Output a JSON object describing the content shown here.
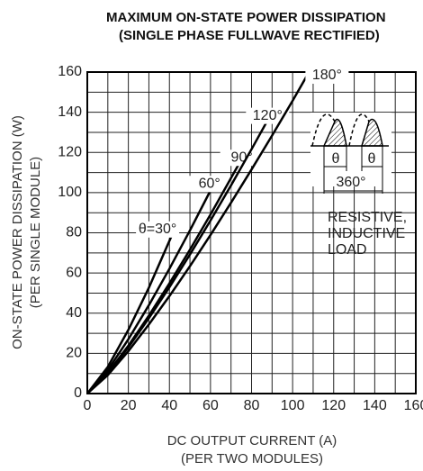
{
  "chart_data": {
    "type": "line",
    "title": [
      "MAXIMUM ON-STATE POWER DISSIPATION",
      "(SINGLE PHASE FULLWAVE RECTIFIED)"
    ],
    "ylabel": [
      "ON-STATE POWER DISSIPATION (W)",
      "(PER SINGLE MODULE)"
    ],
    "xlabel": [
      "DC OUTPUT CURRENT (A)",
      "(PER TWO MODULES)"
    ],
    "xlim": [
      0,
      160
    ],
    "ylim": [
      0,
      160
    ],
    "xticks": [
      0,
      20,
      40,
      60,
      80,
      100,
      120,
      140,
      160
    ],
    "yticks": [
      0,
      20,
      40,
      60,
      80,
      100,
      120,
      140,
      160
    ],
    "xminor": [
      10,
      30,
      50,
      70,
      90,
      110,
      130,
      150
    ],
    "yminor": [
      10,
      30,
      50,
      70,
      90,
      110,
      130,
      150
    ],
    "grid": true,
    "series": [
      {
        "name": "θ=30°",
        "color": "#000000",
        "x": [
          0,
          10,
          20,
          30,
          43
        ],
        "values": [
          0,
          13.3,
          31.7,
          52.7,
          83
        ]
      },
      {
        "name": "60°",
        "color": "#000000",
        "x": [
          0,
          10,
          20,
          30,
          40,
          50,
          63
        ],
        "values": [
          0,
          11.7,
          27,
          44,
          62.1,
          81.2,
          107
        ]
      },
      {
        "name": "90°",
        "color": "#000000",
        "x": [
          0,
          10,
          20,
          30,
          40,
          50,
          60,
          77
        ],
        "values": [
          0,
          10.4,
          23.8,
          38.8,
          54.8,
          71.6,
          89.1,
          120
        ]
      },
      {
        "name": "120°",
        "color": "#000000",
        "x": [
          0,
          10,
          20,
          30,
          40,
          50,
          60,
          70,
          80,
          90
        ],
        "values": [
          0,
          10,
          23,
          37.5,
          52.9,
          69.2,
          86.1,
          103.6,
          121.6,
          140
        ]
      },
      {
        "name": "180°",
        "color": "#000000",
        "x": [
          0,
          10,
          20,
          30,
          40,
          50,
          60,
          70,
          80,
          90,
          100,
          108
        ],
        "values": [
          0,
          9.2,
          21.1,
          34.4,
          48.5,
          63.4,
          78.9,
          95,
          111.5,
          128.4,
          145.7,
          160
        ]
      }
    ],
    "annotations": {
      "theta_left": "θ",
      "theta_right": "θ",
      "period": "360°",
      "load": [
        "RESISTIVE,",
        "INDUCTIVE",
        "LOAD"
      ]
    }
  }
}
